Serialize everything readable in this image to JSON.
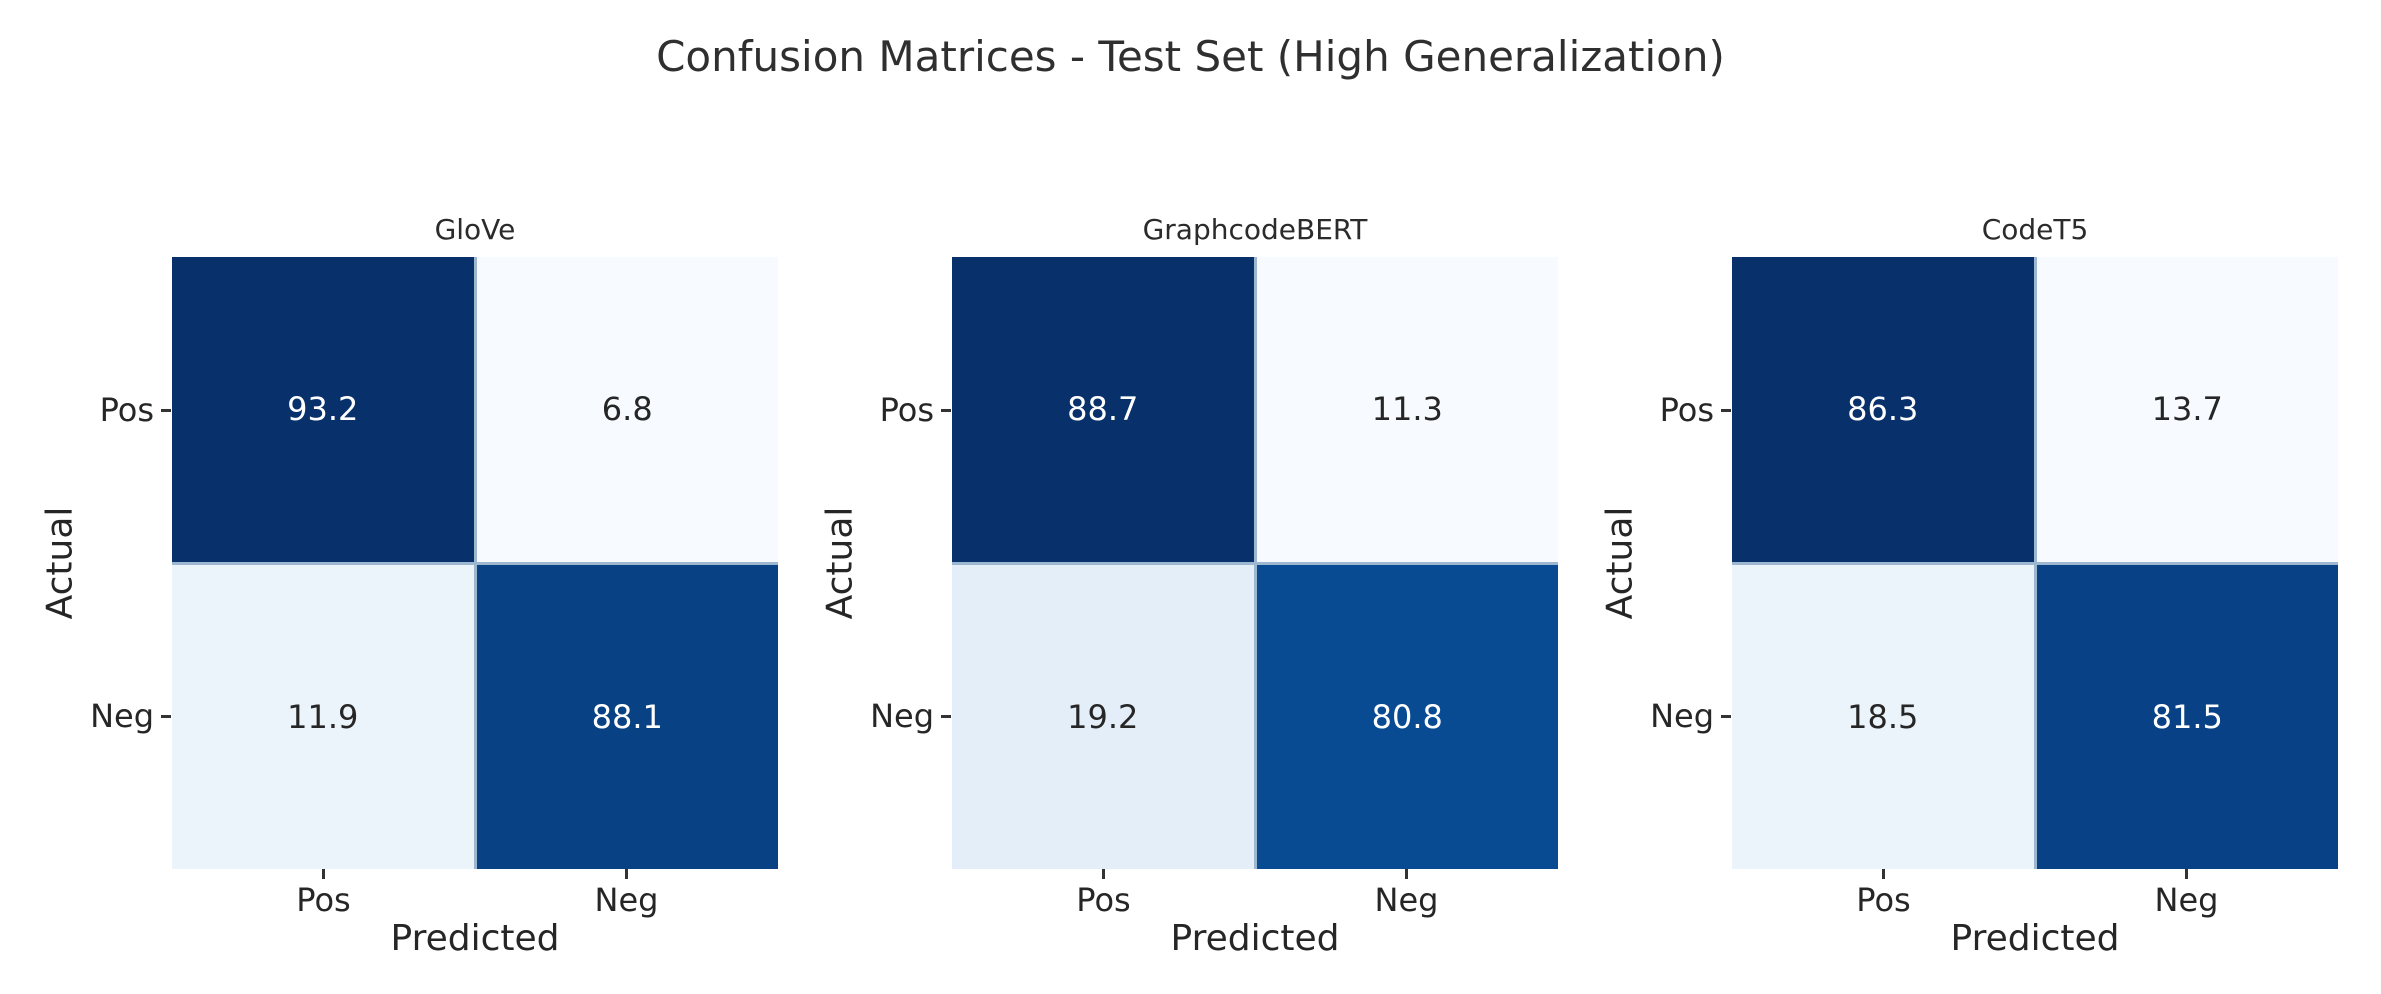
{
  "title": "Confusion Matrices - Test Set (High Generalization)",
  "chart_data": {
    "type": "heatmap",
    "colormap": "Blues",
    "xlabel": "Predicted",
    "ylabel": "Actual",
    "x_ticklabels": [
      "Pos",
      "Neg"
    ],
    "y_ticklabels": [
      "Pos",
      "Neg"
    ],
    "grid": true,
    "legend": false,
    "panels": [
      {
        "title": "GloVe",
        "rows": [
          "Pos",
          "Neg"
        ],
        "cols": [
          "Pos",
          "Neg"
        ],
        "values": [
          [
            93.2,
            6.8
          ],
          [
            11.9,
            88.1
          ]
        ],
        "cell_colors": [
          [
            "#08306b",
            "#f7fbff"
          ],
          [
            "#ebf3fb",
            "#084184"
          ]
        ],
        "text_colors": [
          [
            "#ffffff",
            "#262626"
          ],
          [
            "#262626",
            "#ffffff"
          ]
        ]
      },
      {
        "title": "GraphcodeBERT",
        "rows": [
          "Pos",
          "Neg"
        ],
        "cols": [
          "Pos",
          "Neg"
        ],
        "values": [
          [
            88.7,
            11.3
          ],
          [
            19.2,
            80.8
          ]
        ],
        "cell_colors": [
          [
            "#08306b",
            "#f7fbff"
          ],
          [
            "#e4eef8",
            "#084b93"
          ]
        ],
        "text_colors": [
          [
            "#ffffff",
            "#262626"
          ],
          [
            "#262626",
            "#ffffff"
          ]
        ]
      },
      {
        "title": "CodeT5",
        "rows": [
          "Pos",
          "Neg"
        ],
        "cols": [
          "Pos",
          "Neg"
        ],
        "values": [
          [
            86.3,
            13.7
          ],
          [
            18.5,
            81.5
          ]
        ],
        "cell_colors": [
          [
            "#08306b",
            "#f7fbff"
          ],
          [
            "#ebf3fb",
            "#084185"
          ]
        ],
        "text_colors": [
          [
            "#ffffff",
            "#262626"
          ],
          [
            "#262626",
            "#ffffff"
          ]
        ]
      }
    ]
  },
  "colors": {
    "background": "#ffffff",
    "dark_cell": "#08306b",
    "light_cell": "#f7fbff",
    "gridline": "#9db7d0",
    "tick": "#333333",
    "text": "#262626"
  }
}
